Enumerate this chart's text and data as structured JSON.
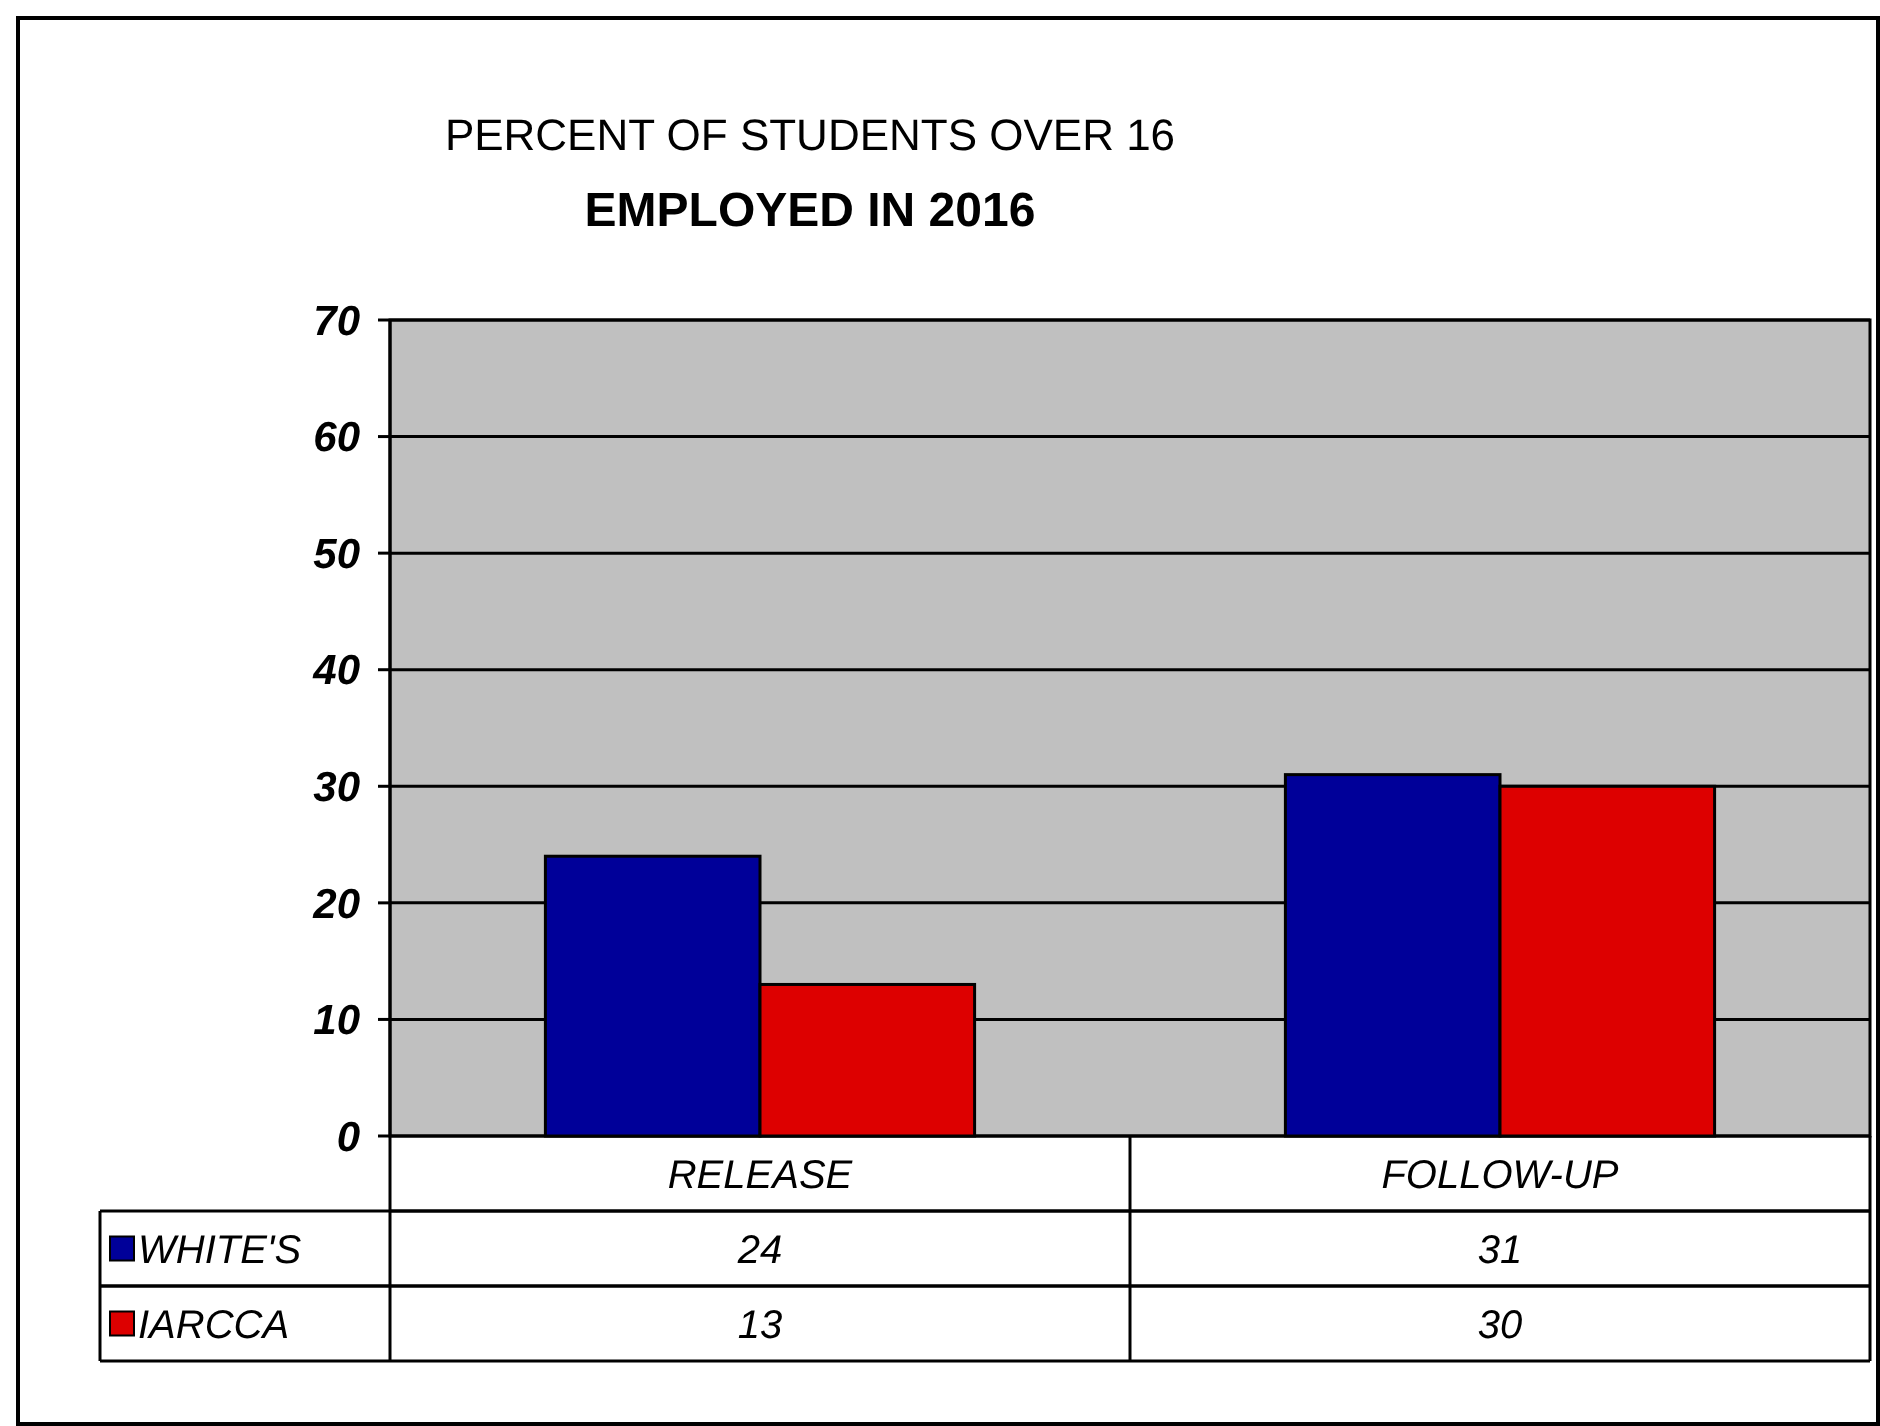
{
  "chart_data": {
    "type": "bar",
    "title": "PERCENT OF STUDENTS OVER 16\nEMPLOYED IN 2016",
    "categories": [
      "RELEASE",
      "FOLLOW-UP"
    ],
    "series": [
      {
        "name": "WHITE'S",
        "color": "#000099",
        "values": [
          24,
          31
        ]
      },
      {
        "name": "IARCCA",
        "color": "#dd0000",
        "values": [
          13,
          30
        ]
      }
    ],
    "ylim": [
      0,
      70
    ],
    "yticks": [
      0,
      10,
      20,
      30,
      40,
      50,
      60,
      70
    ],
    "grid": "y",
    "legend": "bottom left",
    "data_labels": true
  }
}
